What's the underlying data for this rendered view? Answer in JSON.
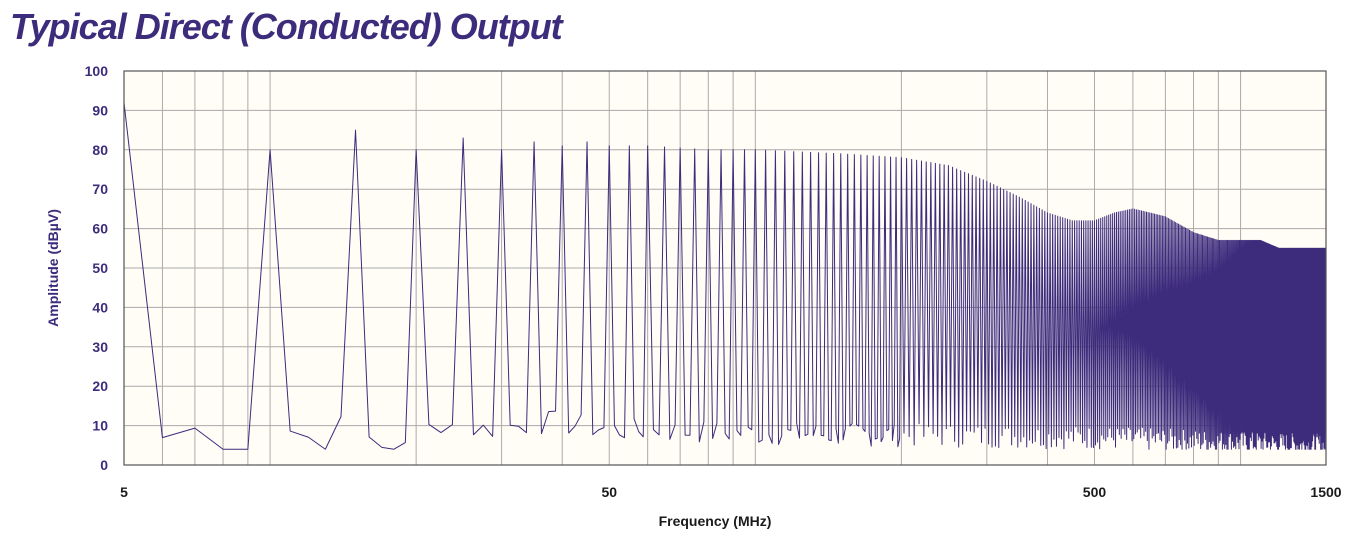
{
  "chart_data": {
    "type": "line",
    "title": "Typical Direct (Conducted) Output",
    "xlabel": "Frequency (MHz)",
    "ylabel": "Amplitude (dBµV)",
    "x_scale": "log",
    "xlim": [
      5,
      1500
    ],
    "ylim": [
      0,
      100
    ],
    "x_tick_labels": [
      "5",
      "50",
      "500",
      "1500"
    ],
    "y_ticks": [
      0,
      10,
      20,
      30,
      40,
      50,
      60,
      70,
      80,
      90,
      100
    ],
    "grid": true,
    "colors": {
      "title": "#3d2b7c",
      "line": "#3d2b7c",
      "grid": "#aaaaaa",
      "plot_bg": "#fffdf6"
    },
    "series": [
      {
        "note_fundamental_MHz": 5,
        "harmonic_peaks": [
          {
            "x": 5,
            "y": 92
          },
          {
            "x": 10,
            "y": 80
          },
          {
            "x": 15,
            "y": 85
          },
          {
            "x": 20,
            "y": 80
          },
          {
            "x": 25,
            "y": 83
          },
          {
            "x": 30,
            "y": 80
          },
          {
            "x": 35,
            "y": 82
          },
          {
            "x": 40,
            "y": 81
          },
          {
            "x": 45,
            "y": 82
          },
          {
            "x": 50,
            "y": 81
          },
          {
            "x": 60,
            "y": 81
          },
          {
            "x": 80,
            "y": 80
          },
          {
            "x": 100,
            "y": 80
          },
          {
            "x": 150,
            "y": 79
          },
          {
            "x": 200,
            "y": 78
          },
          {
            "x": 250,
            "y": 76
          },
          {
            "x": 300,
            "y": 72
          },
          {
            "x": 350,
            "y": 68
          },
          {
            "x": 400,
            "y": 64
          },
          {
            "x": 450,
            "y": 62
          },
          {
            "x": 500,
            "y": 62
          },
          {
            "x": 550,
            "y": 64
          },
          {
            "x": 600,
            "y": 65
          },
          {
            "x": 650,
            "y": 64
          },
          {
            "x": 700,
            "y": 63
          },
          {
            "x": 800,
            "y": 59
          },
          {
            "x": 900,
            "y": 57
          },
          {
            "x": 1000,
            "y": 57
          },
          {
            "x": 1100,
            "y": 57
          },
          {
            "x": 1200,
            "y": 55
          },
          {
            "x": 1300,
            "y": 55
          },
          {
            "x": 1400,
            "y": 55
          },
          {
            "x": 1500,
            "y": 55
          }
        ],
        "noise_floor": [
          {
            "x": 5.5,
            "y": 6
          },
          {
            "x": 6,
            "y": 7
          },
          {
            "x": 6.5,
            "y": 6
          },
          {
            "x": 7,
            "y": 9
          },
          {
            "x": 7.5,
            "y": 11
          },
          {
            "x": 8,
            "y": 4
          },
          {
            "x": 9.5,
            "y": 4
          },
          {
            "x": 10.5,
            "y": 10
          },
          {
            "x": 12,
            "y": 7
          },
          {
            "x": 13,
            "y": 5
          },
          {
            "x": 14,
            "y": 10
          },
          {
            "x": 17,
            "y": 5
          },
          {
            "x": 19,
            "y": 4
          },
          {
            "x": 22,
            "y": 11
          },
          {
            "x": 27,
            "y": 9
          },
          {
            "x": 33,
            "y": 10
          },
          {
            "x": 38,
            "y": 11
          },
          {
            "x": 50,
            "y": 9
          },
          {
            "x": 100,
            "y": 8
          },
          {
            "x": 500,
            "y": 7
          },
          {
            "x": 1500,
            "y": 5
          }
        ]
      }
    ]
  }
}
